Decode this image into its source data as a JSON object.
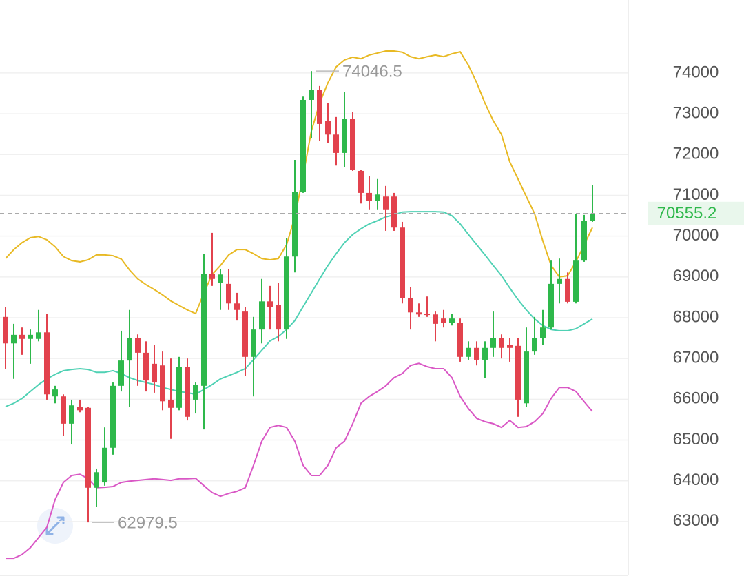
{
  "chart_data": {
    "type": "candlestick",
    "open": [
      68020,
      67370,
      67580,
      67480,
      67480,
      67640,
      66070,
      66070,
      65400,
      65820,
      65790,
      63830,
      63960,
      64810,
      66330,
      66950,
      67510,
      67140,
      66870,
      66830,
      65990,
      65790,
      66800,
      65990,
      66330,
      69080,
      68860,
      68830,
      68350,
      68150,
      67040,
      67710,
      68400,
      68320,
      67710,
      69500,
      71090,
      73340,
      73590,
      72830,
      72490,
      72040,
      72880,
      71600,
      71060,
      70860,
      70970,
      70970,
      70210,
      68490,
      68130,
      68100,
      68080,
      67980,
      67880,
      67880,
      67040,
      67260,
      66970,
      67260,
      67510,
      67340,
      67310,
      65900,
      67170,
      67510,
      67760,
      68830,
      68950,
      68390,
      69400,
      70380
    ],
    "high": [
      68270,
      67850,
      67760,
      67710,
      68190,
      68100,
      66330,
      66120,
      65990,
      65990,
      65820,
      64300,
      65310,
      66410,
      67680,
      68190,
      67590,
      67420,
      67340,
      67170,
      67000,
      67040,
      67000,
      66410,
      69570,
      70080,
      69200,
      69200,
      68610,
      68270,
      68020,
      68950,
      68780,
      68860,
      69960,
      71870,
      73420,
      74046.5,
      73680,
      73260,
      72920,
      73540,
      73040,
      71630,
      71480,
      71400,
      71230,
      71060,
      70350,
      68760,
      68350,
      68520,
      68150,
      68190,
      68100,
      67980,
      67420,
      67420,
      67420,
      68150,
      67590,
      67510,
      67510,
      67760,
      68020,
      68190,
      69400,
      69450,
      69110,
      70550,
      70520,
      71260
    ],
    "low": [
      66750,
      66500,
      67090,
      66870,
      67420,
      65990,
      65900,
      65110,
      64890,
      65680,
      62979.5,
      63370,
      63880,
      64640,
      66190,
      65820,
      66330,
      66190,
      66160,
      65730,
      65030,
      65730,
      65480,
      65650,
      65260,
      68780,
      68190,
      68190,
      67930,
      66580,
      66070,
      67370,
      67710,
      67420,
      67480,
      69110,
      71060,
      72410,
      72330,
      72280,
      71730,
      71700,
      71600,
      70800,
      70640,
      70640,
      70130,
      70130,
      68350,
      67710,
      68020,
      68020,
      67420,
      67760,
      67810,
      66920,
      66970,
      66830,
      66530,
      67040,
      67000,
      66920,
      65570,
      65820,
      67090,
      67340,
      67710,
      68350,
      68350,
      68350,
      69370,
      70350
    ],
    "close": [
      67370,
      67580,
      67480,
      67580,
      67640,
      66120,
      66240,
      65400,
      65850,
      65730,
      63830,
      64210,
      64810,
      66330,
      66950,
      67510,
      67140,
      66460,
      66410,
      65950,
      65790,
      66800,
      65570,
      66360,
      69080,
      68950,
      69060,
      68350,
      68190,
      67040,
      67710,
      68400,
      68270,
      67710,
      69500,
      71090,
      73340,
      73590,
      72750,
      72490,
      72040,
      72880,
      71630,
      71060,
      70860,
      71020,
      70640,
      70210,
      68490,
      68130,
      68080,
      68070,
      67850,
      67880,
      67980,
      67040,
      67260,
      66970,
      67260,
      67510,
      67260,
      67260,
      65990,
      67170,
      67510,
      67760,
      68830,
      68950,
      68390,
      69400,
      70380,
      70555.2
    ],
    "up_color": "#2eb84b",
    "down_color": "#e2424d",
    "lines": [
      {
        "color": "#e8b923",
        "values": [
          69450,
          69670,
          69840,
          69960,
          69990,
          69910,
          69740,
          69500,
          69400,
          69370,
          69420,
          69540,
          69540,
          69520,
          69440,
          69170,
          68950,
          68810,
          68690,
          68560,
          68410,
          68300,
          68190,
          68100,
          68610,
          69060,
          69280,
          69540,
          69670,
          69670,
          69570,
          69450,
          69420,
          69450,
          69790,
          70470,
          71480,
          72580,
          73260,
          73760,
          74150,
          74320,
          74390,
          74350,
          74440,
          74490,
          74540,
          74540,
          74510,
          74400,
          74350,
          74400,
          74440,
          74400,
          74470,
          74520,
          74190,
          73760,
          73260,
          72830,
          72490,
          71820,
          71400,
          70970,
          70550,
          69880,
          69280,
          69000,
          69030,
          69370,
          69790,
          70210
        ]
      },
      {
        "color": "#4fd1b4",
        "values": [
          65820,
          65900,
          66020,
          66190,
          66360,
          66500,
          66610,
          66700,
          66730,
          66750,
          66730,
          66660,
          66660,
          66700,
          66630,
          66530,
          66460,
          66410,
          66360,
          66290,
          66240,
          66190,
          66160,
          66120,
          66240,
          66360,
          66500,
          66580,
          66660,
          66750,
          66970,
          67200,
          67430,
          67540,
          67710,
          67930,
          68270,
          68610,
          68950,
          69280,
          69570,
          69840,
          70040,
          70180,
          70300,
          70380,
          70470,
          70520,
          70590,
          70600,
          70600,
          70600,
          70600,
          70590,
          70500,
          70300,
          70040,
          69790,
          69540,
          69280,
          69030,
          68730,
          68440,
          68190,
          67970,
          67810,
          67710,
          67680,
          67680,
          67730,
          67850,
          67970
        ]
      },
      {
        "color": "#d957c5",
        "values": [
          62100,
          62100,
          62190,
          62360,
          62610,
          62860,
          63540,
          63960,
          64130,
          64160,
          64050,
          63830,
          63840,
          63860,
          63960,
          63990,
          64010,
          64030,
          64050,
          64030,
          64010,
          64050,
          64050,
          64060,
          63880,
          63710,
          63620,
          63690,
          63740,
          63830,
          64380,
          64970,
          65310,
          65360,
          65310,
          64970,
          64380,
          64130,
          64130,
          64380,
          64810,
          64970,
          65400,
          65900,
          66070,
          66190,
          66330,
          66530,
          66630,
          66830,
          66880,
          66800,
          66750,
          66750,
          66530,
          66070,
          65770,
          65530,
          65450,
          65400,
          65310,
          65480,
          65310,
          65330,
          65450,
          65650,
          66020,
          66290,
          66290,
          66190,
          65940,
          65700
        ]
      }
    ],
    "ylim": [
      61680,
      75790
    ],
    "yticks": [
      63000,
      64000,
      65000,
      66000,
      67000,
      68000,
      69000,
      70000,
      71000,
      72000,
      73000,
      74000
    ],
    "grid": true
  }
}
